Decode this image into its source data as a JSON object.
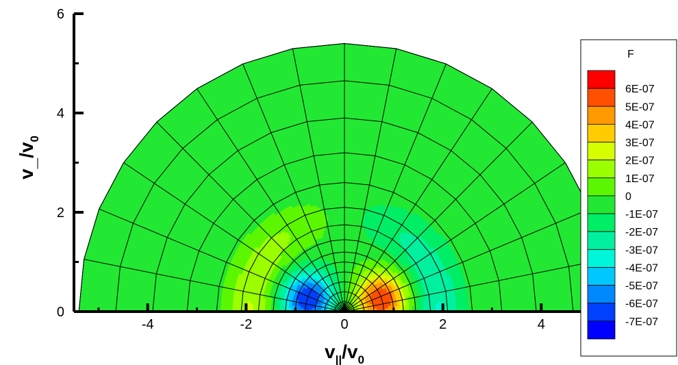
{
  "chart_data": {
    "type": "heatmap",
    "title": "",
    "xlabel": {
      "base": "v",
      "sub": "||",
      "slash": "/v",
      "sub2": "0"
    },
    "ylabel": {
      "base": "v",
      "sub": "_",
      "slash": "/v",
      "sub2": "0"
    },
    "xlim": [
      -5.5,
      5.5
    ],
    "ylim": [
      0,
      6
    ],
    "x_ticks": [
      -4,
      -2,
      0,
      2,
      4
    ],
    "y_ticks": [
      0,
      2,
      4,
      6
    ],
    "x_tick_labels": [
      "-4",
      "-2",
      "0",
      "2",
      "4"
    ],
    "y_tick_labels": [
      "0",
      "2",
      "4",
      "6"
    ],
    "domain": {
      "shape": "half-disk",
      "v_max": 5.4,
      "radial_grid": [
        0,
        0.2,
        0.4,
        0.6,
        0.8,
        1.0,
        1.2,
        1.45,
        1.75,
        2.1,
        2.6,
        3.2,
        3.9,
        4.65,
        5.4
      ],
      "angular_divisions": 16
    },
    "field": {
      "name": "F",
      "description_of_structure": "antisymmetric pattern: negative lobe centred near (-0.7, 0.3), positive lobe near (0.7, 0.3), weaker outer ring of opposite sign near |v|≈1.9",
      "inner_amplitude": 6.5e-07,
      "inner_center": [
        0.75,
        0.25
      ],
      "inner_width": 0.55,
      "outer_amplitude": 2.6e-07,
      "outer_radius": 1.9,
      "outer_width": 0.5
    },
    "legend": {
      "title": "F",
      "position": "right",
      "levels": [
        "6E-07",
        "5E-07",
        "4E-07",
        "3E-07",
        "2E-07",
        "1E-07",
        "0",
        "-1E-07",
        "-2E-07",
        "-3E-07",
        "-4E-07",
        "-5E-07",
        "-6E-07",
        "-7E-07"
      ],
      "colors": [
        "#ff0000",
        "#ff4f00",
        "#ff9900",
        "#ffcc00",
        "#d6ff00",
        "#9bff00",
        "#5cf700",
        "#22e833",
        "#00ee66",
        "#00f09f",
        "#00f6d8",
        "#00c8ff",
        "#0088ff",
        "#0040ff",
        "#0000ff"
      ]
    }
  }
}
